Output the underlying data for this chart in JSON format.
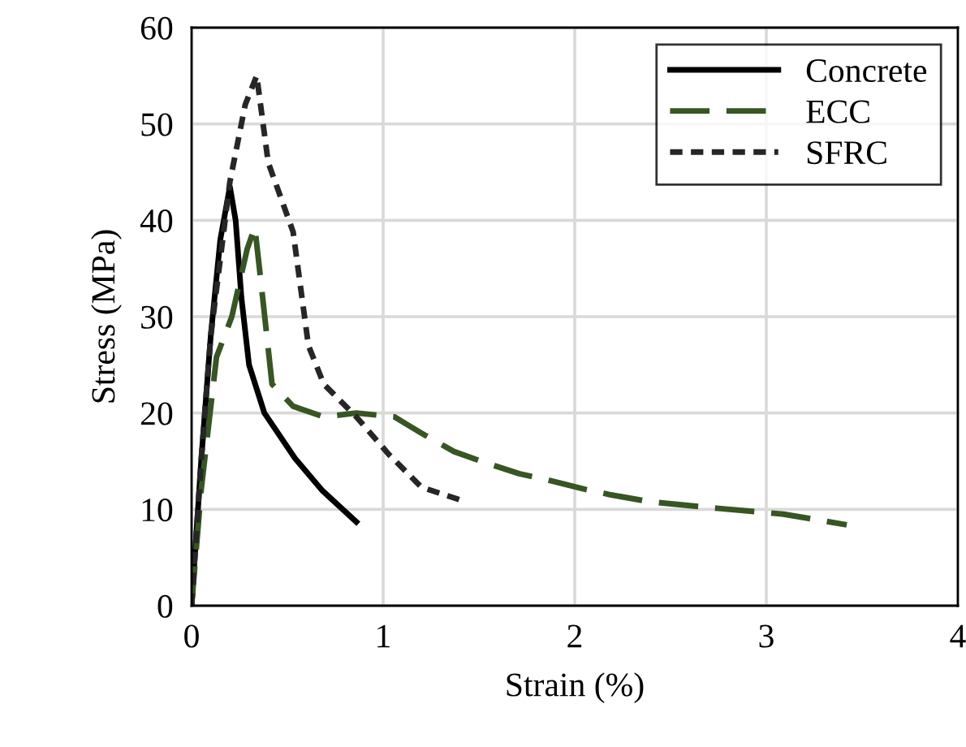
{
  "chart_data": {
    "type": "line",
    "xlabel": "Strain (%)",
    "ylabel": "Stress (MPa)",
    "xlim": [
      0,
      4
    ],
    "xticks": [
      0,
      1,
      2,
      3,
      4
    ],
    "ylim": [
      0,
      60
    ],
    "yticks": [
      0,
      10,
      20,
      30,
      40,
      50,
      60
    ],
    "grid": true,
    "legend": "top right",
    "marker": "none",
    "series": [
      {
        "name": "Concrete",
        "color": "#000000",
        "line_style": "solid",
        "x": [
          0,
          0.05,
          0.1,
          0.15,
          0.2,
          0.23,
          0.26,
          0.3,
          0.38,
          0.54,
          0.68,
          0.86
        ],
        "values": [
          0,
          15,
          28,
          38,
          43.5,
          40,
          32,
          25,
          20,
          15.3,
          12,
          8.7
        ]
      },
      {
        "name": "ECC",
        "color": "#375623",
        "line_style": "dashed",
        "x": [
          0,
          0.05,
          0.13,
          0.21,
          0.29,
          0.33,
          0.36,
          0.42,
          0.53,
          0.69,
          0.86,
          1.06,
          1.2,
          1.37,
          1.54,
          1.71,
          1.85,
          2.05,
          2.19,
          2.39,
          2.75,
          3.09,
          3.42
        ],
        "values": [
          0,
          12,
          25.8,
          30,
          37,
          39.3,
          34,
          23,
          20.7,
          19.6,
          20,
          19.6,
          17.9,
          16,
          14.8,
          13.7,
          13.1,
          12.1,
          11.5,
          10.8,
          10.1,
          9.5,
          8.4
        ]
      },
      {
        "name": "SFRC",
        "color": "#262626",
        "line_style": "dotted",
        "x": [
          0,
          0.05,
          0.1,
          0.2,
          0.28,
          0.34,
          0.4,
          0.53,
          0.61,
          0.69,
          0.86,
          1.03,
          1.2,
          1.4
        ],
        "values": [
          0,
          15,
          28,
          44,
          52,
          55,
          46,
          38.8,
          27,
          23,
          19.6,
          15.7,
          12.3,
          11
        ]
      }
    ]
  }
}
